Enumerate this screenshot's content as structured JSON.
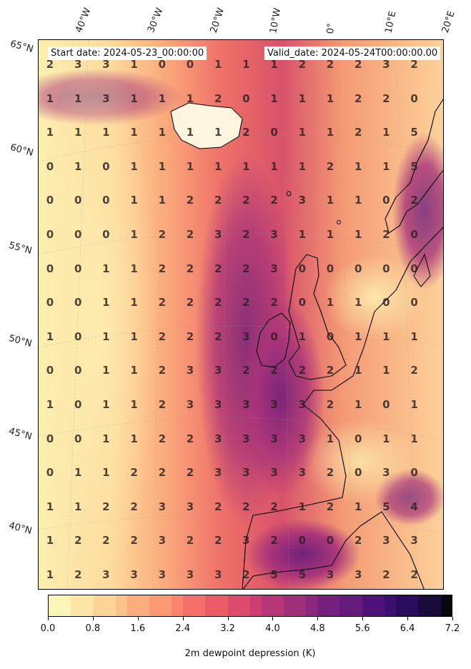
{
  "start_date": "Start date: 2024-05-23_00:00:00",
  "valid_date": "Valid_date: 2024-05-24T00:00:00.00",
  "lon_labels": [
    "40°W",
    "30°W",
    "20°W",
    "10°W",
    "0°",
    "10°E",
    "20°E"
  ],
  "lat_labels": [
    "65°N",
    "60°N",
    "55°N",
    "50°N",
    "45°N",
    "40°N"
  ],
  "colorbar": {
    "title": "2m dewpoint depression (K)",
    "tick_labels": [
      "0.0",
      "0.8",
      "1.6",
      "2.4",
      "3.2",
      "4.0",
      "4.8",
      "5.6",
      "6.4",
      "7.2"
    ],
    "min": 0.0,
    "max": 7.2,
    "colormap": "magma_r",
    "colors": [
      "#fcf5b8",
      "#fde6a6",
      "#fdd498",
      "#fdc18a",
      "#fdad7d",
      "#fc9973",
      "#f9856c",
      "#f47068",
      "#eb5b68",
      "#dc4a6c",
      "#ca3e72",
      "#b53776",
      "#a02f7a",
      "#8b287b",
      "#76207d",
      "#631b7c",
      "#4f127b",
      "#3b0f70",
      "#290c5b",
      "#170c3a",
      "#08060f"
    ]
  },
  "chart_data": {
    "type": "heatmap",
    "title": "",
    "colorbar_label": "2m dewpoint depression (K)",
    "value_range": [
      0.0,
      7.2
    ],
    "annotated_values": [
      [
        2,
        3,
        3,
        1,
        0,
        0,
        1,
        1,
        1,
        2,
        2,
        2,
        3,
        2
      ],
      [
        1,
        1,
        3,
        1,
        1,
        1,
        2,
        0,
        1,
        1,
        1,
        2,
        2,
        0
      ],
      [
        1,
        1,
        1,
        1,
        1,
        1,
        1,
        2,
        0,
        1,
        1,
        2,
        1,
        5
      ],
      [
        0,
        1,
        0,
        1,
        1,
        1,
        1,
        1,
        1,
        1,
        2,
        1,
        1,
        5
      ],
      [
        0,
        0,
        0,
        1,
        1,
        2,
        2,
        2,
        2,
        3,
        1,
        1,
        0,
        2
      ],
      [
        0,
        0,
        0,
        1,
        2,
        2,
        3,
        2,
        3,
        1,
        1,
        1,
        2,
        0
      ],
      [
        0,
        0,
        1,
        1,
        2,
        2,
        2,
        2,
        3,
        0,
        0,
        0,
        0,
        0
      ],
      [
        0,
        0,
        1,
        1,
        2,
        2,
        2,
        2,
        2,
        0,
        1,
        1,
        0,
        0
      ],
      [
        1,
        0,
        1,
        1,
        2,
        2,
        2,
        3,
        0,
        1,
        0,
        1,
        1,
        1
      ],
      [
        0,
        0,
        1,
        1,
        2,
        3,
        3,
        2,
        2,
        2,
        2,
        1,
        1,
        2
      ],
      [
        1,
        0,
        1,
        1,
        2,
        3,
        3,
        3,
        3,
        3,
        2,
        1,
        0,
        1
      ],
      [
        0,
        0,
        1,
        1,
        2,
        2,
        3,
        3,
        3,
        3,
        1,
        0,
        1,
        1
      ],
      [
        0,
        1,
        1,
        2,
        2,
        2,
        3,
        3,
        3,
        3,
        2,
        0,
        3,
        0
      ],
      [
        1,
        1,
        2,
        2,
        3,
        3,
        2,
        2,
        2,
        1,
        2,
        1,
        5,
        4
      ],
      [
        1,
        2,
        2,
        2,
        3,
        2,
        2,
        3,
        2,
        0,
        0,
        2,
        3,
        3
      ],
      [
        1,
        2,
        3,
        3,
        3,
        3,
        3,
        2,
        5,
        5,
        3,
        3,
        2,
        2
      ]
    ]
  }
}
